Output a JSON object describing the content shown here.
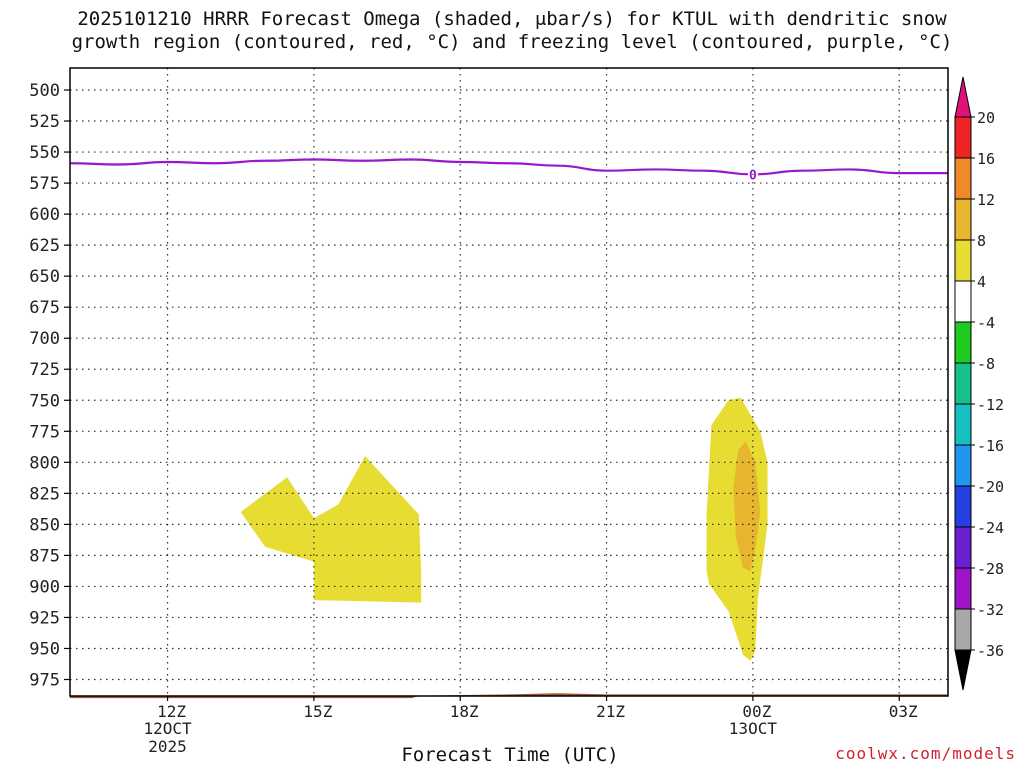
{
  "title_line1": "2025101210 HRRR Forecast Omega (shaded, μbar/s) for KTUL with dendritic snow",
  "title_line2": "growth region (contoured, red, °C) and freezing level (contoured, purple, °C)",
  "credit": "coolwx.com/models",
  "chart_data": {
    "type": "area",
    "title": "2025101210 HRRR Forecast Omega (shaded, μbar/s) for KTUL with dendritic snow growth region (contoured, red, °C) and freezing level (contoured, purple, °C)",
    "xlabel": "Forecast Time (UTC)",
    "ylabel": "",
    "y_scale": "reversed pressure (hPa)",
    "ylim": [
      990,
      485
    ],
    "xlim_hours_from_10Z": [
      0,
      18
    ],
    "y_ticks": [
      500,
      525,
      550,
      575,
      600,
      625,
      650,
      675,
      700,
      725,
      750,
      775,
      800,
      825,
      850,
      875,
      900,
      925,
      950,
      975
    ],
    "x_ticks": [
      {
        "label": "12Z",
        "sub": [
          "12OCT",
          "2025"
        ],
        "hour": 2
      },
      {
        "label": "15Z",
        "sub": [],
        "hour": 5
      },
      {
        "label": "18Z",
        "sub": [],
        "hour": 8
      },
      {
        "label": "21Z",
        "sub": [],
        "hour": 11
      },
      {
        "label": "00Z",
        "sub": [
          "13OCT"
        ],
        "hour": 14
      },
      {
        "label": "03Z",
        "sub": [],
        "hour": 17
      }
    ],
    "grid": true,
    "colorbar": {
      "labels": [
        "20",
        "16",
        "12",
        "8",
        "4",
        "-4",
        "-8",
        "-12",
        "-16",
        "-20",
        "-24",
        "-28",
        "-32",
        "-36"
      ],
      "colors": [
        "#e0127a",
        "#ee2424",
        "#f08a28",
        "#e8b52e",
        "#e6dc32",
        "#ffffff",
        "#1ecb1e",
        "#17c08a",
        "#16c0c0",
        "#2196ef",
        "#2440e0",
        "#6a20d0",
        "#a014c8",
        "#a8a8a8",
        "#000000"
      ]
    },
    "freezing_level": {
      "label": "0",
      "color": "#9a18cc",
      "points": [
        [
          0,
          559
        ],
        [
          1,
          560
        ],
        [
          2,
          558
        ],
        [
          3,
          559
        ],
        [
          4,
          557
        ],
        [
          5,
          556
        ],
        [
          6,
          557
        ],
        [
          7,
          556
        ],
        [
          8,
          558
        ],
        [
          9,
          559
        ],
        [
          10,
          561
        ],
        [
          11,
          565
        ],
        [
          12,
          564
        ],
        [
          13,
          565
        ],
        [
          14,
          568
        ],
        [
          15,
          565
        ],
        [
          16,
          564
        ],
        [
          17,
          567
        ],
        [
          18,
          567
        ]
      ]
    },
    "omega_regions": [
      {
        "name": "omega 4-8",
        "color": "#e6dc32",
        "points": [
          [
            3.5,
            840
          ],
          [
            4.45,
            812
          ],
          [
            5.0,
            847
          ],
          [
            5.0,
            911
          ],
          [
            7.2,
            913
          ],
          [
            7.2,
            889
          ],
          [
            7.15,
            842
          ],
          [
            6.05,
            795
          ],
          [
            5.5,
            834
          ],
          [
            5.0,
            847
          ],
          [
            4.45,
            812
          ],
          [
            4.0,
            830
          ]
        ],
        "outline": [
          [
            3.5,
            840
          ],
          [
            4.45,
            812
          ],
          [
            5.0,
            845
          ],
          [
            5.5,
            834
          ],
          [
            6.05,
            795
          ],
          [
            7.15,
            842
          ],
          [
            7.2,
            889
          ],
          [
            7.2,
            913
          ],
          [
            5.0,
            911
          ],
          [
            5.0,
            880
          ],
          [
            4.0,
            868
          ]
        ]
      },
      {
        "name": "omega 4-8",
        "color": "#e6dc32",
        "outline": [
          [
            13.05,
            888
          ],
          [
            13.05,
            842
          ],
          [
            13.15,
            770
          ],
          [
            13.5,
            750
          ],
          [
            13.75,
            748
          ],
          [
            14.15,
            775
          ],
          [
            14.3,
            800
          ],
          [
            14.3,
            850
          ],
          [
            14.1,
            910
          ],
          [
            14.05,
            952
          ],
          [
            13.95,
            960
          ],
          [
            13.8,
            955
          ],
          [
            13.5,
            920
          ],
          [
            13.1,
            898
          ]
        ]
      },
      {
        "name": "omega 8-12",
        "color": "#e8b52e",
        "outline": [
          [
            13.7,
            790
          ],
          [
            13.85,
            783
          ],
          [
            14.05,
            800
          ],
          [
            14.15,
            840
          ],
          [
            14.05,
            870
          ],
          [
            13.95,
            888
          ],
          [
            13.8,
            885
          ],
          [
            13.65,
            860
          ],
          [
            13.6,
            820
          ]
        ]
      }
    ],
    "terrain": {
      "color": "#a0552d",
      "top_points": [
        [
          0,
          990
        ],
        [
          7,
          990
        ],
        [
          7.2,
          988
        ],
        [
          9.0,
          987
        ],
        [
          10,
          986
        ],
        [
          11,
          987
        ],
        [
          18,
          987
        ]
      ]
    }
  }
}
